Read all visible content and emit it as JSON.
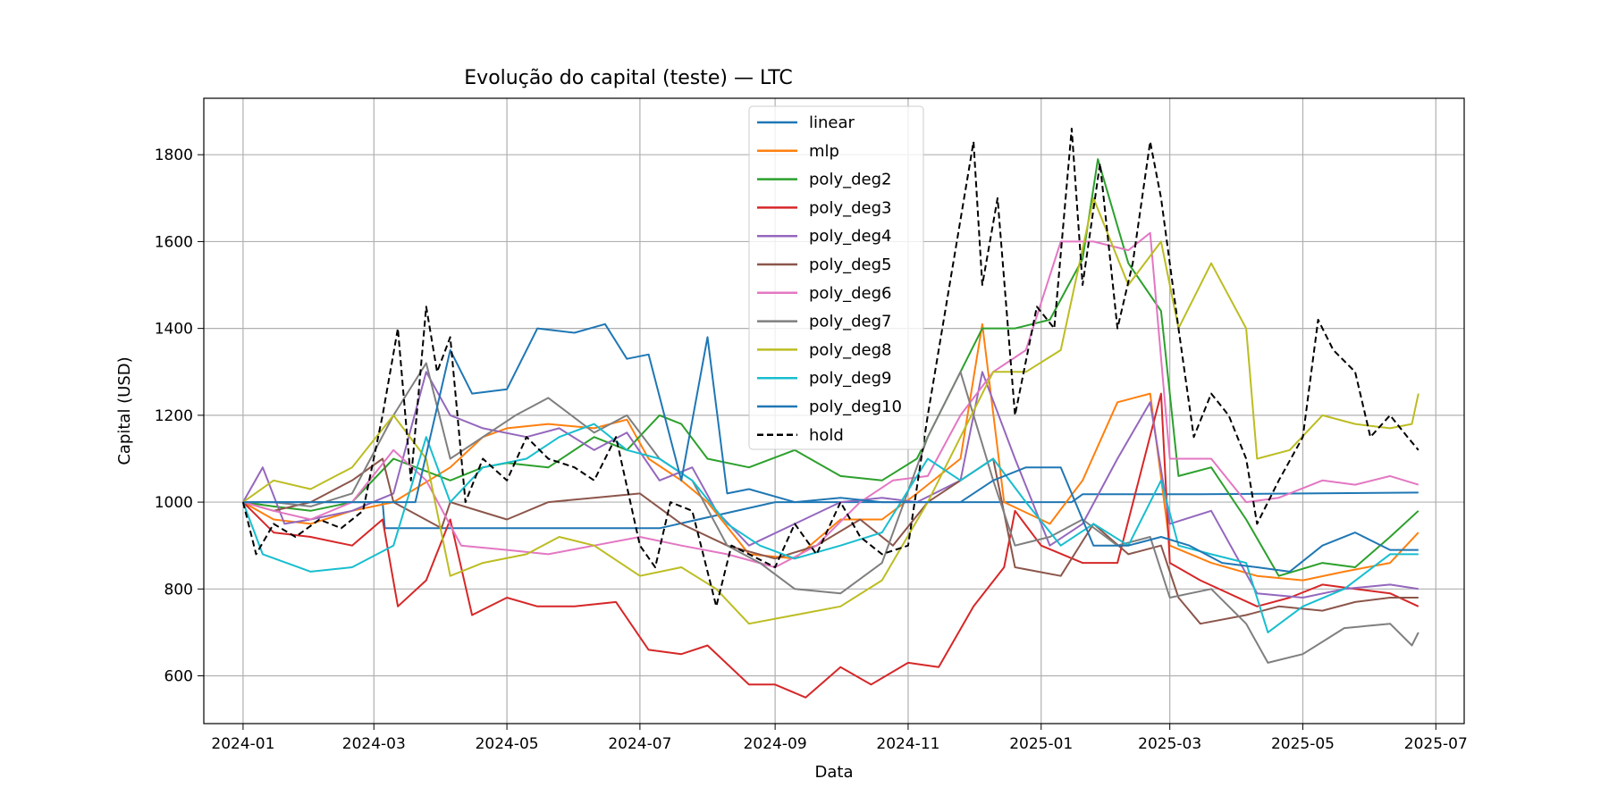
{
  "chart_data": {
    "type": "line",
    "title": "Evolução do capital (teste) — LTC",
    "xlabel": "Data",
    "ylabel": "Capital (USD)",
    "xlim": [
      "2023-12-14",
      "2025-07-14"
    ],
    "ylim": [
      490,
      1930
    ],
    "xticks": [
      "2024-01",
      "2024-03",
      "2024-05",
      "2024-07",
      "2024-09",
      "2024-11",
      "2025-01",
      "2025-03",
      "2025-05",
      "2025-07"
    ],
    "xtick_dates": [
      "2024-01-01",
      "2024-03-01",
      "2024-05-01",
      "2024-07-01",
      "2024-09-01",
      "2024-11-01",
      "2025-01-01",
      "2025-03-01",
      "2025-05-01",
      "2025-07-01"
    ],
    "yticks": [
      600,
      800,
      1000,
      1200,
      1400,
      1600,
      1800
    ],
    "grid": true,
    "legend_position": "top-center",
    "series": [
      {
        "name": "linear",
        "color": "#1f77b4",
        "dash": false,
        "x": [
          "2024-01-01",
          "2024-01-10",
          "2024-02-01",
          "2024-03-05",
          "2024-03-06",
          "2024-04-01",
          "2024-06-20",
          "2024-07-10",
          "2024-09-01",
          "2024-11-01",
          "2024-12-02",
          "2025-01-01",
          "2025-01-15",
          "2025-01-20",
          "2025-02-15",
          "2025-03-15",
          "2025-05-01",
          "2025-06-23"
        ],
        "y": [
          1000,
          1000,
          1000,
          1000,
          940,
          940,
          940,
          940,
          1000,
          1000,
          1000,
          1000,
          1000,
          1018,
          1018,
          1018,
          1020,
          1022
        ]
      },
      {
        "name": "mlp",
        "color": "#ff7f0e",
        "dash": false,
        "x": [
          "2024-01-01",
          "2024-01-15",
          "2024-02-01",
          "2024-02-20",
          "2024-03-10",
          "2024-04-05",
          "2024-04-20",
          "2024-05-01",
          "2024-05-20",
          "2024-06-10",
          "2024-06-25",
          "2024-07-05",
          "2024-07-20",
          "2024-08-01",
          "2024-08-20",
          "2024-09-10",
          "2024-10-01",
          "2024-10-20",
          "2024-11-05",
          "2024-11-25",
          "2024-12-05",
          "2024-12-15",
          "2025-01-05",
          "2025-01-20",
          "2025-02-05",
          "2025-02-20",
          "2025-03-01",
          "2025-03-20",
          "2025-04-10",
          "2025-05-01",
          "2025-05-20",
          "2025-06-10",
          "2025-06-23"
        ],
        "y": [
          1000,
          960,
          950,
          980,
          1000,
          1080,
          1150,
          1170,
          1180,
          1170,
          1190,
          1100,
          1050,
          1000,
          880,
          870,
          960,
          960,
          1020,
          1100,
          1410,
          1000,
          950,
          1050,
          1230,
          1250,
          900,
          860,
          830,
          820,
          840,
          860,
          930
        ]
      },
      {
        "name": "poly_deg2",
        "color": "#2ca02c",
        "dash": false,
        "x": [
          "2024-01-01",
          "2024-01-15",
          "2024-02-01",
          "2024-02-20",
          "2024-03-10",
          "2024-04-05",
          "2024-04-20",
          "2024-05-01",
          "2024-05-20",
          "2024-06-10",
          "2024-06-25",
          "2024-07-10",
          "2024-07-20",
          "2024-08-01",
          "2024-08-20",
          "2024-09-10",
          "2024-10-01",
          "2024-10-20",
          "2024-11-05",
          "2024-11-25",
          "2024-12-05",
          "2024-12-20",
          "2025-01-05",
          "2025-01-20",
          "2025-01-27",
          "2025-02-10",
          "2025-02-25",
          "2025-03-05",
          "2025-03-20",
          "2025-04-05",
          "2025-04-20",
          "2025-05-10",
          "2025-05-25",
          "2025-06-10",
          "2025-06-23"
        ],
        "y": [
          1000,
          990,
          980,
          1000,
          1100,
          1050,
          1080,
          1090,
          1080,
          1150,
          1120,
          1200,
          1180,
          1100,
          1080,
          1120,
          1060,
          1050,
          1100,
          1300,
          1400,
          1400,
          1420,
          1560,
          1790,
          1550,
          1440,
          1060,
          1080,
          960,
          830,
          860,
          850,
          920,
          980
        ]
      },
      {
        "name": "poly_deg3",
        "color": "#d62728",
        "dash": false,
        "x": [
          "2024-01-01",
          "2024-01-15",
          "2024-02-01",
          "2024-02-20",
          "2024-03-05",
          "2024-03-12",
          "2024-03-25",
          "2024-04-05",
          "2024-04-15",
          "2024-05-01",
          "2024-05-15",
          "2024-06-01",
          "2024-06-20",
          "2024-07-05",
          "2024-07-20",
          "2024-08-01",
          "2024-08-20",
          "2024-09-01",
          "2024-09-15",
          "2024-10-01",
          "2024-10-15",
          "2024-11-01",
          "2024-11-15",
          "2024-12-01",
          "2024-12-15",
          "2024-12-20",
          "2025-01-01",
          "2025-01-20",
          "2025-02-05",
          "2025-02-25",
          "2025-03-01",
          "2025-03-15",
          "2025-04-10",
          "2025-04-25",
          "2025-05-10",
          "2025-05-25",
          "2025-06-10",
          "2025-06-23"
        ],
        "y": [
          1000,
          930,
          920,
          900,
          960,
          760,
          820,
          960,
          740,
          780,
          760,
          760,
          770,
          660,
          650,
          670,
          580,
          580,
          550,
          620,
          580,
          630,
          620,
          760,
          850,
          980,
          900,
          860,
          860,
          1250,
          860,
          820,
          760,
          780,
          810,
          800,
          790,
          760
        ]
      },
      {
        "name": "poly_deg4",
        "color": "#9467bd",
        "dash": false,
        "x": [
          "2024-01-01",
          "2024-01-10",
          "2024-01-20",
          "2024-02-01",
          "2024-02-20",
          "2024-03-10",
          "2024-03-25",
          "2024-04-05",
          "2024-04-20",
          "2024-05-10",
          "2024-05-25",
          "2024-06-10",
          "2024-06-25",
          "2024-07-10",
          "2024-07-25",
          "2024-08-05",
          "2024-08-20",
          "2024-09-10",
          "2024-10-01",
          "2024-10-20",
          "2024-11-05",
          "2024-11-25",
          "2024-12-05",
          "2024-12-20",
          "2025-01-05",
          "2025-01-20",
          "2025-02-05",
          "2025-02-20",
          "2025-03-01",
          "2025-03-20",
          "2025-04-10",
          "2025-05-01",
          "2025-05-20",
          "2025-06-10",
          "2025-06-23"
        ],
        "y": [
          1000,
          1080,
          950,
          960,
          980,
          1020,
          1300,
          1200,
          1170,
          1150,
          1170,
          1120,
          1160,
          1050,
          1080,
          980,
          900,
          950,
          1000,
          1010,
          1000,
          1050,
          1300,
          1100,
          900,
          950,
          1100,
          1230,
          950,
          980,
          790,
          780,
          800,
          810,
          800
        ]
      },
      {
        "name": "poly_deg5",
        "color": "#8c564b",
        "dash": false,
        "x": [
          "2024-01-01",
          "2024-01-15",
          "2024-02-01",
          "2024-02-20",
          "2024-03-05",
          "2024-03-10",
          "2024-04-01",
          "2024-04-05",
          "2024-05-01",
          "2024-05-20",
          "2024-06-10",
          "2024-07-01",
          "2024-07-20",
          "2024-08-10",
          "2024-09-01",
          "2024-09-20",
          "2024-10-10",
          "2024-10-25",
          "2024-11-10",
          "2024-11-25",
          "2024-12-10",
          "2024-12-20",
          "2025-01-10",
          "2025-01-25",
          "2025-02-10",
          "2025-02-25",
          "2025-03-05",
          "2025-03-15",
          "2025-04-05",
          "2025-04-20",
          "2025-05-10",
          "2025-05-25",
          "2025-06-10",
          "2025-06-23"
        ],
        "y": [
          1000,
          980,
          1000,
          1050,
          1100,
          1000,
          940,
          1000,
          960,
          1000,
          1010,
          1020,
          950,
          900,
          870,
          900,
          960,
          900,
          1000,
          1050,
          1100,
          850,
          830,
          950,
          880,
          900,
          780,
          720,
          740,
          760,
          750,
          770,
          780,
          780
        ]
      },
      {
        "name": "poly_deg6",
        "color": "#e377c2",
        "dash": false,
        "x": [
          "2024-01-01",
          "2024-01-15",
          "2024-02-01",
          "2024-02-20",
          "2024-03-10",
          "2024-03-25",
          "2024-04-10",
          "2024-05-01",
          "2024-05-20",
          "2024-06-10",
          "2024-07-01",
          "2024-07-20",
          "2024-08-10",
          "2024-09-01",
          "2024-09-20",
          "2024-10-10",
          "2024-10-25",
          "2024-11-10",
          "2024-11-25",
          "2024-12-10",
          "2024-12-25",
          "2025-01-10",
          "2025-01-25",
          "2025-02-10",
          "2025-02-20",
          "2025-03-01",
          "2025-03-20",
          "2025-04-05",
          "2025-04-20",
          "2025-05-10",
          "2025-05-25",
          "2025-06-10",
          "2025-06-23"
        ],
        "y": [
          1000,
          980,
          960,
          1000,
          1120,
          1050,
          900,
          890,
          880,
          900,
          920,
          900,
          880,
          850,
          900,
          1000,
          1050,
          1060,
          1200,
          1300,
          1350,
          1600,
          1600,
          1580,
          1620,
          1100,
          1100,
          1000,
          1010,
          1050,
          1040,
          1060,
          1040
        ]
      },
      {
        "name": "poly_deg7",
        "color": "#7f7f7f",
        "dash": false,
        "x": [
          "2024-01-01",
          "2024-01-15",
          "2024-02-01",
          "2024-02-20",
          "2024-03-10",
          "2024-03-25",
          "2024-04-05",
          "2024-04-20",
          "2024-05-05",
          "2024-05-20",
          "2024-06-10",
          "2024-06-25",
          "2024-07-10",
          "2024-07-25",
          "2024-08-10",
          "2024-08-25",
          "2024-09-10",
          "2024-10-01",
          "2024-10-20",
          "2024-11-10",
          "2024-11-25",
          "2024-12-10",
          "2024-12-20",
          "2025-01-05",
          "2025-01-20",
          "2025-02-05",
          "2025-02-20",
          "2025-03-01",
          "2025-03-20",
          "2025-04-05",
          "2025-04-15",
          "2025-05-01",
          "2025-05-20",
          "2025-06-10",
          "2025-06-20",
          "2025-06-23"
        ],
        "y": [
          1000,
          1000,
          990,
          1020,
          1200,
          1320,
          1100,
          1150,
          1200,
          1240,
          1160,
          1200,
          1100,
          1050,
          900,
          860,
          800,
          790,
          860,
          1150,
          1300,
          1050,
          900,
          920,
          960,
          900,
          920,
          780,
          800,
          720,
          630,
          650,
          710,
          720,
          670,
          700
        ]
      },
      {
        "name": "poly_deg8",
        "color": "#bcbd22",
        "dash": false,
        "x": [
          "2024-01-01",
          "2024-01-15",
          "2024-02-01",
          "2024-02-20",
          "2024-03-10",
          "2024-03-25",
          "2024-04-05",
          "2024-04-20",
          "2024-05-10",
          "2024-05-25",
          "2024-06-10",
          "2024-07-01",
          "2024-07-20",
          "2024-08-05",
          "2024-08-20",
          "2024-09-10",
          "2024-10-01",
          "2024-10-20",
          "2024-11-10",
          "2024-11-25",
          "2024-12-10",
          "2024-12-25",
          "2025-01-10",
          "2025-01-25",
          "2025-02-10",
          "2025-02-25",
          "2025-03-05",
          "2025-03-20",
          "2025-04-05",
          "2025-04-10",
          "2025-04-25",
          "2025-05-10",
          "2025-05-25",
          "2025-06-10",
          "2025-06-20",
          "2025-06-23"
        ],
        "y": [
          1000,
          1050,
          1030,
          1080,
          1200,
          1100,
          830,
          860,
          880,
          920,
          900,
          830,
          850,
          800,
          720,
          740,
          760,
          820,
          1000,
          1150,
          1300,
          1300,
          1350,
          1700,
          1500,
          1600,
          1400,
          1550,
          1400,
          1100,
          1120,
          1200,
          1180,
          1170,
          1180,
          1250
        ]
      },
      {
        "name": "poly_deg9",
        "color": "#17becf",
        "dash": false,
        "x": [
          "2024-01-01",
          "2024-01-10",
          "2024-02-01",
          "2024-02-20",
          "2024-03-10",
          "2024-03-25",
          "2024-04-05",
          "2024-04-20",
          "2024-05-10",
          "2024-05-25",
          "2024-06-10",
          "2024-06-25",
          "2024-07-10",
          "2024-07-25",
          "2024-08-10",
          "2024-08-25",
          "2024-09-10",
          "2024-10-01",
          "2024-10-20",
          "2024-11-10",
          "2024-11-25",
          "2024-12-10",
          "2024-12-25",
          "2025-01-10",
          "2025-01-25",
          "2025-02-10",
          "2025-02-25",
          "2025-03-05",
          "2025-03-20",
          "2025-04-05",
          "2025-04-15",
          "2025-05-01",
          "2025-05-20",
          "2025-06-10",
          "2025-06-23"
        ],
        "y": [
          1000,
          880,
          840,
          850,
          900,
          1150,
          1000,
          1080,
          1100,
          1150,
          1180,
          1120,
          1100,
          1050,
          950,
          900,
          870,
          900,
          930,
          1100,
          1050,
          1100,
          1000,
          900,
          950,
          900,
          1050,
          900,
          880,
          860,
          700,
          760,
          800,
          880,
          880
        ]
      },
      {
        "name": "poly_deg10",
        "color": "#1f77b4",
        "dash": false,
        "x": [
          "2024-01-01",
          "2024-01-05",
          "2024-02-01",
          "2024-03-01",
          "2024-03-20",
          "2024-04-05",
          "2024-04-15",
          "2024-05-01",
          "2024-05-15",
          "2024-06-01",
          "2024-06-15",
          "2024-06-25",
          "2024-07-05",
          "2024-07-20",
          "2024-08-01",
          "2024-08-10",
          "2024-08-20",
          "2024-09-10",
          "2024-10-01",
          "2024-10-20",
          "2024-11-10",
          "2024-11-25",
          "2024-12-10",
          "2024-12-25",
          "2025-01-10",
          "2025-01-25",
          "2025-02-10",
          "2025-02-25",
          "2025-03-10",
          "2025-03-25",
          "2025-04-10",
          "2025-04-25",
          "2025-05-10",
          "2025-05-25",
          "2025-06-10",
          "2025-06-23"
        ],
        "y": [
          1000,
          1000,
          1000,
          1000,
          1000,
          1350,
          1250,
          1260,
          1400,
          1390,
          1410,
          1330,
          1340,
          1050,
          1380,
          1020,
          1030,
          1000,
          1010,
          1000,
          1000,
          1000,
          1050,
          1080,
          1080,
          900,
          900,
          920,
          900,
          860,
          850,
          840,
          900,
          930,
          890,
          890
        ]
      },
      {
        "name": "hold",
        "color": "#000000",
        "dash": true,
        "x": [
          "2024-01-01",
          "2024-01-07",
          "2024-01-15",
          "2024-01-25",
          "2024-02-05",
          "2024-02-15",
          "2024-02-25",
          "2024-03-05",
          "2024-03-12",
          "2024-03-18",
          "2024-03-25",
          "2024-03-30",
          "2024-04-05",
          "2024-04-12",
          "2024-04-20",
          "2024-05-01",
          "2024-05-10",
          "2024-05-20",
          "2024-06-01",
          "2024-06-10",
          "2024-06-20",
          "2024-07-01",
          "2024-07-08",
          "2024-07-15",
          "2024-07-25",
          "2024-08-05",
          "2024-08-12",
          "2024-08-20",
          "2024-09-01",
          "2024-09-10",
          "2024-09-20",
          "2024-10-01",
          "2024-10-10",
          "2024-10-20",
          "2024-11-01",
          "2024-11-10",
          "2024-11-20",
          "2024-12-01",
          "2024-12-05",
          "2024-12-12",
          "2024-12-20",
          "2024-12-30",
          "2025-01-07",
          "2025-01-15",
          "2025-01-20",
          "2025-01-28",
          "2025-02-05",
          "2025-02-12",
          "2025-02-20",
          "2025-02-25",
          "2025-03-05",
          "2025-03-12",
          "2025-03-20",
          "2025-03-28",
          "2025-04-05",
          "2025-04-10",
          "2025-04-20",
          "2025-05-01",
          "2025-05-08",
          "2025-05-15",
          "2025-05-25",
          "2025-06-01",
          "2025-06-10",
          "2025-06-18",
          "2025-06-23"
        ],
        "y": [
          1000,
          880,
          950,
          920,
          960,
          940,
          980,
          1200,
          1400,
          1050,
          1450,
          1300,
          1380,
          1000,
          1100,
          1050,
          1150,
          1100,
          1080,
          1050,
          1150,
          900,
          850,
          1000,
          980,
          760,
          900,
          880,
          850,
          950,
          880,
          1000,
          920,
          880,
          900,
          1200,
          1500,
          1830,
          1500,
          1700,
          1200,
          1450,
          1400,
          1860,
          1500,
          1780,
          1400,
          1550,
          1830,
          1700,
          1400,
          1150,
          1250,
          1200,
          1100,
          950,
          1050,
          1150,
          1420,
          1350,
          1300,
          1150,
          1200,
          1150,
          1120
        ]
      }
    ]
  }
}
